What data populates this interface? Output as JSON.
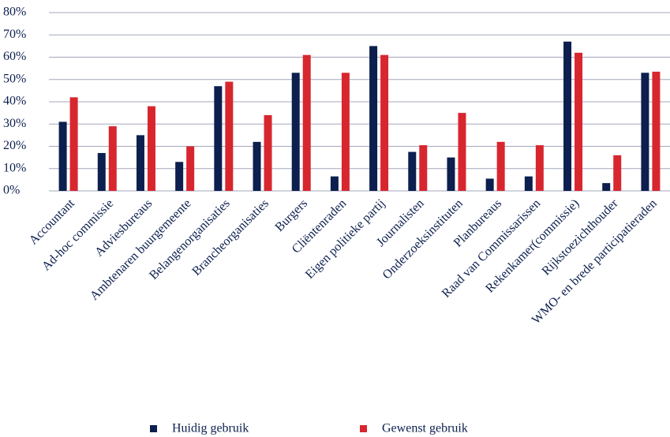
{
  "chart_data": {
    "type": "bar",
    "categories": [
      "Accountant",
      "Ad-hoc commissie",
      "Adviesbureaus",
      "Ambtenaren buurgemeente",
      "Belangenorganisaties",
      "Brancheorganisaties",
      "Burgers",
      "Cliëntenraden",
      "Eigen politieke partij",
      "Journalisten",
      "Onderzoeksinstituten",
      "Planbureaus",
      "Raad van Commissarissen",
      "Rekenkamer(commissie)",
      "Rijkstoezichthouder",
      "WMO- en brede participatieraden"
    ],
    "series": [
      {
        "name": "Huidig gebruik",
        "color": "#0c1f4e",
        "values": [
          31,
          17,
          25,
          13,
          47,
          22,
          53,
          6.5,
          65,
          17.5,
          15,
          5.5,
          6.5,
          67,
          3.5,
          53
        ]
      },
      {
        "name": "Gewenst gebruik",
        "color": "#d8262f",
        "values": [
          42,
          29,
          38,
          20,
          49,
          34,
          61,
          53,
          61,
          20.5,
          35,
          22,
          20.5,
          62,
          16,
          53.5
        ]
      }
    ],
    "ylim": [
      0,
      80
    ],
    "yticks": [
      {
        "value": 0,
        "label": "0%"
      },
      {
        "value": 10,
        "label": "10%"
      },
      {
        "value": 20,
        "label": "20%"
      },
      {
        "value": 30,
        "label": "30%"
      },
      {
        "value": 40,
        "label": "40%"
      },
      {
        "value": 50,
        "label": "50%"
      },
      {
        "value": 60,
        "label": "60%"
      },
      {
        "value": 70,
        "label": "70%"
      },
      {
        "value": 80,
        "label": "80%"
      }
    ],
    "grid": true,
    "legend": "bottom"
  }
}
